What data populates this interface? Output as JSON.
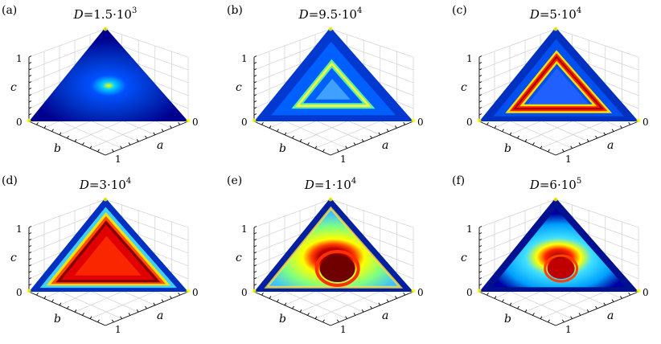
{
  "figure": {
    "panels": [
      {
        "letter": "(a)",
        "title": "D=1.5·10",
        "exponent": "3",
        "pattern": "center-spot"
      },
      {
        "letter": "(b)",
        "title": "D=9.5·10",
        "exponent": "4",
        "pattern": "small-triangle-ring"
      },
      {
        "letter": "(c)",
        "title": "D=5·10",
        "exponent": "4",
        "pattern": "red-triangle-ring"
      },
      {
        "letter": "(d)",
        "title": "D=3·10",
        "exponent": "4",
        "pattern": "filled-red-triangle"
      },
      {
        "letter": "(e)",
        "title": "D=1·10",
        "exponent": "4",
        "pattern": "large-red-blob"
      },
      {
        "letter": "(f)",
        "title": "D=6·10",
        "exponent": "5",
        "pattern": "red-blob"
      }
    ],
    "axes": {
      "a_label": "a",
      "b_label": "b",
      "c_label": "c",
      "tick_zero": "0",
      "tick_one": "1"
    },
    "colormap": [
      "#00008f",
      "#0050ff",
      "#00d0ff",
      "#ffff00",
      "#ff4000",
      "#800000"
    ]
  }
}
